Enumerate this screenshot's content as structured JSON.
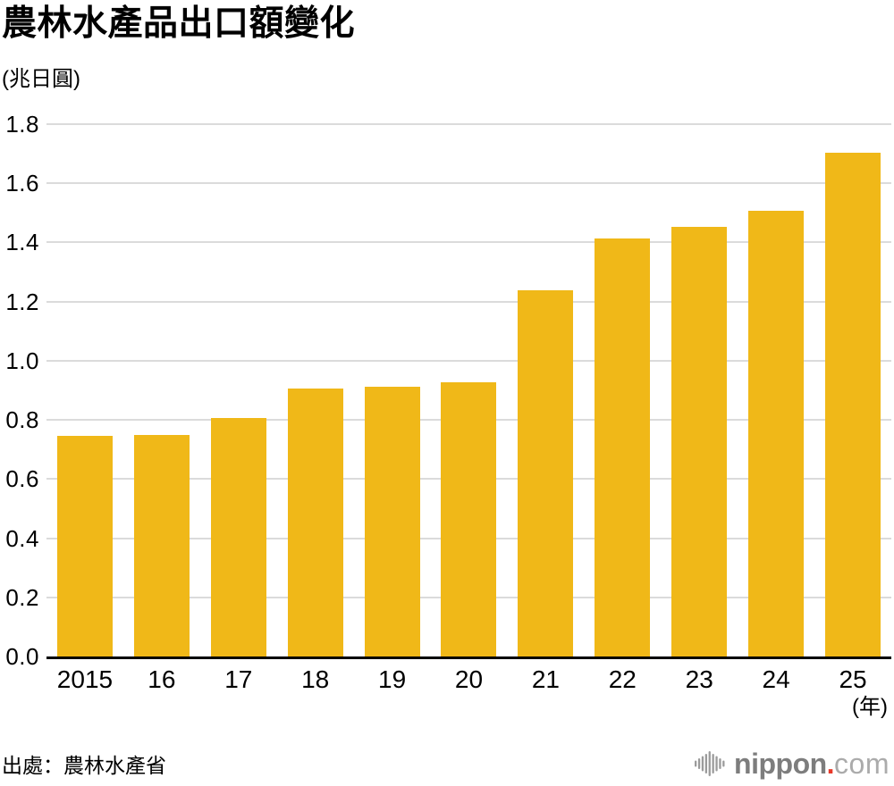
{
  "chart_data": {
    "type": "bar",
    "title": "農林水產品出口額變化",
    "unit_label": "(兆日圓)",
    "x_unit_label": "(年)",
    "categories": [
      "2015",
      "16",
      "17",
      "18",
      "19",
      "20",
      "21",
      "22",
      "23",
      "24",
      "25"
    ],
    "values": [
      0.745,
      0.75,
      0.807,
      0.906,
      0.912,
      0.926,
      1.238,
      1.414,
      1.454,
      1.507,
      1.704
    ],
    "yticks": [
      "0.0",
      "0.2",
      "0.4",
      "0.6",
      "0.8",
      "1.0",
      "1.2",
      "1.4",
      "1.6",
      "1.8"
    ],
    "ylim": [
      0,
      1.8
    ],
    "grid": true,
    "legend_position": "none",
    "bar_color": "#F0B818"
  },
  "footer": {
    "source": "出處：農林水產省",
    "logo": {
      "name": "nippon.com",
      "primary": "nippon",
      "dot": ".",
      "secondary": "com"
    }
  },
  "colors": {
    "bar": "#F0B818",
    "grid": "#DBDBDB",
    "axis": "#000000",
    "text": "#000000",
    "logo_icon": "#9B9B9B",
    "logo_primary": "#7D7D7D",
    "logo_dot": "#E83828",
    "logo_secondary": "#ABABAB"
  }
}
